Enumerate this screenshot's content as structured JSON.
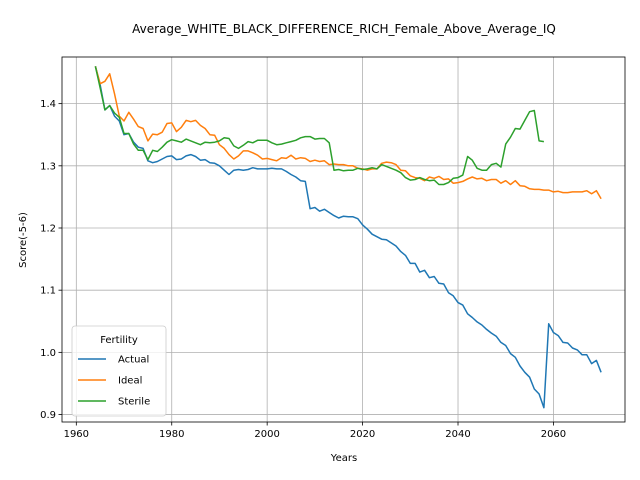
{
  "chart_data": {
    "type": "line",
    "title": "Average_WHITE_BLACK_DIFFERENCE_RICH_Female_Above_Average_IQ",
    "xlabel": "Years",
    "ylabel": "Score(-5-6)",
    "xlim": [
      1957,
      2075
    ],
    "ylim": [
      0.888,
      1.475
    ],
    "xticks": [
      1960,
      1980,
      2000,
      2020,
      2040,
      2060
    ],
    "yticks": [
      0.9,
      1.0,
      1.1,
      1.2,
      1.3,
      1.4
    ],
    "ytick_labels": [
      "0.9",
      "1.0",
      "1.1",
      "1.2",
      "1.3",
      "1.4"
    ],
    "grid": true,
    "legend": {
      "title": "Fertility",
      "placement": "lower-left"
    },
    "series": [
      {
        "name": "Actual",
        "color": "#1f77b4",
        "points": [
          [
            1964,
            1.46
          ],
          [
            1965,
            1.43
          ],
          [
            1966,
            1.39
          ],
          [
            1967,
            1.397
          ],
          [
            1968,
            1.38
          ],
          [
            1969,
            1.372
          ],
          [
            1970,
            1.35
          ],
          [
            1971,
            1.352
          ],
          [
            1972,
            1.338
          ],
          [
            1973,
            1.33
          ],
          [
            1974,
            1.328
          ],
          [
            1975,
            1.308
          ],
          [
            1976,
            1.305
          ],
          [
            1977,
            1.307
          ],
          [
            1978,
            1.311
          ],
          [
            1979,
            1.315
          ],
          [
            1980,
            1.316
          ],
          [
            1981,
            1.31
          ],
          [
            1982,
            1.311
          ],
          [
            1983,
            1.316
          ],
          [
            1984,
            1.318
          ],
          [
            1985,
            1.315
          ],
          [
            1986,
            1.309
          ],
          [
            1987,
            1.31
          ],
          [
            1988,
            1.305
          ],
          [
            1989,
            1.304
          ],
          [
            1990,
            1.3
          ],
          [
            1991,
            1.293
          ],
          [
            1992,
            1.286
          ],
          [
            1993,
            1.293
          ],
          [
            1994,
            1.294
          ],
          [
            1995,
            1.293
          ],
          [
            1996,
            1.294
          ],
          [
            1997,
            1.297
          ],
          [
            1998,
            1.295
          ],
          [
            1999,
            1.295
          ],
          [
            2000,
            1.295
          ],
          [
            2001,
            1.296
          ],
          [
            2002,
            1.295
          ],
          [
            2003,
            1.295
          ],
          [
            2004,
            1.291
          ],
          [
            2005,
            1.286
          ],
          [
            2006,
            1.282
          ],
          [
            2007,
            1.276
          ],
          [
            2008,
            1.275
          ],
          [
            2009,
            1.231
          ],
          [
            2010,
            1.233
          ],
          [
            2011,
            1.227
          ],
          [
            2012,
            1.23
          ],
          [
            2013,
            1.225
          ],
          [
            2014,
            1.22
          ],
          [
            2015,
            1.216
          ],
          [
            2016,
            1.219
          ],
          [
            2017,
            1.218
          ],
          [
            2018,
            1.218
          ],
          [
            2019,
            1.215
          ],
          [
            2020,
            1.205
          ],
          [
            2021,
            1.198
          ],
          [
            2022,
            1.19
          ],
          [
            2023,
            1.186
          ],
          [
            2024,
            1.182
          ],
          [
            2025,
            1.181
          ],
          [
            2026,
            1.176
          ],
          [
            2027,
            1.171
          ],
          [
            2028,
            1.162
          ],
          [
            2029,
            1.156
          ],
          [
            2030,
            1.143
          ],
          [
            2031,
            1.143
          ],
          [
            2032,
            1.129
          ],
          [
            2033,
            1.132
          ],
          [
            2034,
            1.12
          ],
          [
            2035,
            1.122
          ],
          [
            2036,
            1.111
          ],
          [
            2037,
            1.11
          ],
          [
            2038,
            1.096
          ],
          [
            2039,
            1.091
          ],
          [
            2040,
            1.08
          ],
          [
            2041,
            1.076
          ],
          [
            2042,
            1.062
          ],
          [
            2043,
            1.056
          ],
          [
            2044,
            1.049
          ],
          [
            2045,
            1.044
          ],
          [
            2046,
            1.037
          ],
          [
            2047,
            1.031
          ],
          [
            2048,
            1.026
          ],
          [
            2049,
            1.016
          ],
          [
            2050,
            1.011
          ],
          [
            2051,
            0.998
          ],
          [
            2052,
            0.992
          ],
          [
            2053,
            0.978
          ],
          [
            2054,
            0.968
          ],
          [
            2055,
            0.96
          ],
          [
            2056,
            0.941
          ],
          [
            2057,
            0.933
          ],
          [
            2058,
            0.911
          ],
          [
            2059,
            1.046
          ],
          [
            2060,
            1.032
          ],
          [
            2061,
            1.027
          ],
          [
            2062,
            1.016
          ],
          [
            2063,
            1.015
          ],
          [
            2064,
            1.007
          ],
          [
            2065,
            1.004
          ],
          [
            2066,
            0.996
          ],
          [
            2067,
            0.996
          ],
          [
            2068,
            0.982
          ],
          [
            2069,
            0.987
          ],
          [
            2070,
            0.968
          ]
        ]
      },
      {
        "name": "Ideal",
        "color": "#ff7f0e",
        "points": [
          [
            1964,
            1.46
          ],
          [
            1965,
            1.432
          ],
          [
            1966,
            1.436
          ],
          [
            1967,
            1.448
          ],
          [
            1968,
            1.416
          ],
          [
            1969,
            1.38
          ],
          [
            1970,
            1.372
          ],
          [
            1971,
            1.386
          ],
          [
            1972,
            1.375
          ],
          [
            1973,
            1.363
          ],
          [
            1974,
            1.36
          ],
          [
            1975,
            1.34
          ],
          [
            1976,
            1.351
          ],
          [
            1977,
            1.35
          ],
          [
            1978,
            1.354
          ],
          [
            1979,
            1.368
          ],
          [
            1980,
            1.369
          ],
          [
            1981,
            1.355
          ],
          [
            1982,
            1.362
          ],
          [
            1983,
            1.373
          ],
          [
            1984,
            1.371
          ],
          [
            1985,
            1.373
          ],
          [
            1986,
            1.365
          ],
          [
            1987,
            1.36
          ],
          [
            1988,
            1.35
          ],
          [
            1989,
            1.349
          ],
          [
            1990,
            1.334
          ],
          [
            1991,
            1.328
          ],
          [
            1992,
            1.318
          ],
          [
            1993,
            1.311
          ],
          [
            1994,
            1.316
          ],
          [
            1995,
            1.324
          ],
          [
            1996,
            1.324
          ],
          [
            1997,
            1.321
          ],
          [
            1998,
            1.317
          ],
          [
            1999,
            1.311
          ],
          [
            2000,
            1.312
          ],
          [
            2001,
            1.31
          ],
          [
            2002,
            1.308
          ],
          [
            2003,
            1.313
          ],
          [
            2004,
            1.312
          ],
          [
            2005,
            1.317
          ],
          [
            2006,
            1.311
          ],
          [
            2007,
            1.313
          ],
          [
            2008,
            1.312
          ],
          [
            2009,
            1.307
          ],
          [
            2010,
            1.309
          ],
          [
            2011,
            1.307
          ],
          [
            2012,
            1.308
          ],
          [
            2013,
            1.302
          ],
          [
            2014,
            1.303
          ],
          [
            2015,
            1.302
          ],
          [
            2016,
            1.302
          ],
          [
            2017,
            1.3
          ],
          [
            2018,
            1.3
          ],
          [
            2019,
            1.296
          ],
          [
            2020,
            1.295
          ],
          [
            2021,
            1.293
          ],
          [
            2022,
            1.295
          ],
          [
            2023,
            1.295
          ],
          [
            2024,
            1.304
          ],
          [
            2025,
            1.306
          ],
          [
            2026,
            1.305
          ],
          [
            2027,
            1.302
          ],
          [
            2028,
            1.293
          ],
          [
            2029,
            1.292
          ],
          [
            2030,
            1.284
          ],
          [
            2031,
            1.281
          ],
          [
            2032,
            1.28
          ],
          [
            2033,
            1.276
          ],
          [
            2034,
            1.282
          ],
          [
            2035,
            1.28
          ],
          [
            2036,
            1.283
          ],
          [
            2037,
            1.278
          ],
          [
            2038,
            1.279
          ],
          [
            2039,
            1.272
          ],
          [
            2040,
            1.273
          ],
          [
            2041,
            1.275
          ],
          [
            2042,
            1.279
          ],
          [
            2043,
            1.282
          ],
          [
            2044,
            1.279
          ],
          [
            2045,
            1.28
          ],
          [
            2046,
            1.276
          ],
          [
            2047,
            1.278
          ],
          [
            2048,
            1.278
          ],
          [
            2049,
            1.272
          ],
          [
            2050,
            1.276
          ],
          [
            2051,
            1.27
          ],
          [
            2052,
            1.276
          ],
          [
            2053,
            1.268
          ],
          [
            2054,
            1.267
          ],
          [
            2055,
            1.263
          ],
          [
            2056,
            1.262
          ],
          [
            2057,
            1.262
          ],
          [
            2058,
            1.261
          ],
          [
            2059,
            1.261
          ],
          [
            2060,
            1.258
          ],
          [
            2061,
            1.259
          ],
          [
            2062,
            1.257
          ],
          [
            2063,
            1.257
          ],
          [
            2064,
            1.258
          ],
          [
            2065,
            1.258
          ],
          [
            2066,
            1.258
          ],
          [
            2067,
            1.26
          ],
          [
            2068,
            1.255
          ],
          [
            2069,
            1.26
          ],
          [
            2070,
            1.247
          ]
        ]
      },
      {
        "name": "Sterile",
        "color": "#2ca02c",
        "points": [
          [
            1964,
            1.46
          ],
          [
            1965,
            1.425
          ],
          [
            1966,
            1.39
          ],
          [
            1967,
            1.397
          ],
          [
            1968,
            1.385
          ],
          [
            1969,
            1.378
          ],
          [
            1970,
            1.352
          ],
          [
            1971,
            1.352
          ],
          [
            1972,
            1.335
          ],
          [
            1973,
            1.325
          ],
          [
            1974,
            1.325
          ],
          [
            1975,
            1.31
          ],
          [
            1976,
            1.325
          ],
          [
            1977,
            1.323
          ],
          [
            1978,
            1.33
          ],
          [
            1979,
            1.338
          ],
          [
            1980,
            1.342
          ],
          [
            1981,
            1.34
          ],
          [
            1982,
            1.338
          ],
          [
            1983,
            1.343
          ],
          [
            1984,
            1.34
          ],
          [
            1985,
            1.337
          ],
          [
            1986,
            1.334
          ],
          [
            1987,
            1.338
          ],
          [
            1988,
            1.337
          ],
          [
            1989,
            1.338
          ],
          [
            1990,
            1.34
          ],
          [
            1991,
            1.345
          ],
          [
            1992,
            1.344
          ],
          [
            1993,
            1.332
          ],
          [
            1994,
            1.328
          ],
          [
            1995,
            1.333
          ],
          [
            1996,
            1.339
          ],
          [
            1997,
            1.337
          ],
          [
            1998,
            1.341
          ],
          [
            1999,
            1.341
          ],
          [
            2000,
            1.341
          ],
          [
            2001,
            1.337
          ],
          [
            2002,
            1.334
          ],
          [
            2003,
            1.335
          ],
          [
            2004,
            1.337
          ],
          [
            2005,
            1.339
          ],
          [
            2006,
            1.341
          ],
          [
            2007,
            1.345
          ],
          [
            2008,
            1.347
          ],
          [
            2009,
            1.347
          ],
          [
            2010,
            1.343
          ],
          [
            2011,
            1.344
          ],
          [
            2012,
            1.344
          ],
          [
            2013,
            1.337
          ],
          [
            2014,
            1.293
          ],
          [
            2015,
            1.294
          ],
          [
            2016,
            1.292
          ],
          [
            2017,
            1.293
          ],
          [
            2018,
            1.293
          ],
          [
            2019,
            1.296
          ],
          [
            2020,
            1.294
          ],
          [
            2021,
            1.295
          ],
          [
            2022,
            1.297
          ],
          [
            2023,
            1.295
          ],
          [
            2024,
            1.302
          ],
          [
            2025,
            1.299
          ],
          [
            2026,
            1.296
          ],
          [
            2027,
            1.293
          ],
          [
            2028,
            1.289
          ],
          [
            2029,
            1.281
          ],
          [
            2030,
            1.277
          ],
          [
            2031,
            1.278
          ],
          [
            2032,
            1.281
          ],
          [
            2033,
            1.278
          ],
          [
            2034,
            1.276
          ],
          [
            2035,
            1.277
          ],
          [
            2036,
            1.27
          ],
          [
            2037,
            1.27
          ],
          [
            2038,
            1.273
          ],
          [
            2039,
            1.28
          ],
          [
            2040,
            1.281
          ],
          [
            2041,
            1.285
          ],
          [
            2042,
            1.315
          ],
          [
            2043,
            1.309
          ],
          [
            2044,
            1.296
          ],
          [
            2045,
            1.293
          ],
          [
            2046,
            1.293
          ],
          [
            2047,
            1.302
          ],
          [
            2048,
            1.304
          ],
          [
            2049,
            1.298
          ],
          [
            2050,
            1.335
          ],
          [
            2051,
            1.346
          ],
          [
            2052,
            1.36
          ],
          [
            2053,
            1.359
          ],
          [
            2054,
            1.373
          ],
          [
            2055,
            1.387
          ],
          [
            2056,
            1.389
          ],
          [
            2057,
            1.34
          ],
          [
            2058,
            1.339
          ]
        ]
      }
    ]
  }
}
